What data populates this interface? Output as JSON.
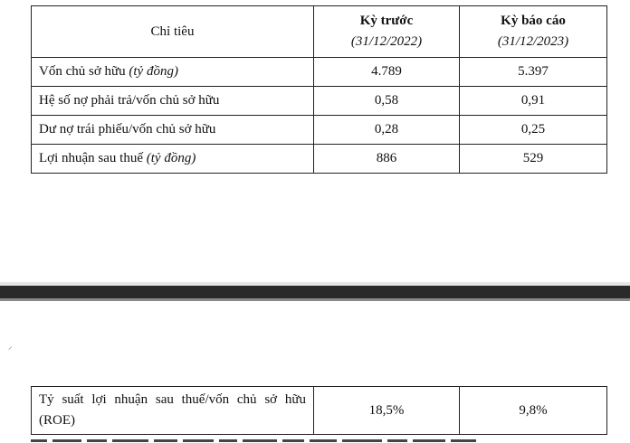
{
  "table_top": {
    "header": {
      "col1": "Chỉ tiêu",
      "col2_title": "Kỳ trước",
      "col2_date": "(31/12/2022)",
      "col3_title": "Kỳ báo cáo",
      "col3_date": "(31/12/2023)"
    },
    "rows": [
      {
        "label": "Vốn chủ sở hữu",
        "unit": "(tỷ đồng)",
        "prev": "4.789",
        "curr": "5.397"
      },
      {
        "label": "Hệ số nợ phải trả/vốn chủ sở hữu",
        "unit": "",
        "prev": "0,58",
        "curr": "0,91"
      },
      {
        "label": "Dư nợ trái phiếu/vốn chủ sở hữu",
        "unit": "",
        "prev": "0,28",
        "curr": "0,25"
      },
      {
        "label": "Lợi nhuận sau thuế",
        "unit": "(tỷ đồng)",
        "prev": "886",
        "curr": "529"
      }
    ]
  },
  "table_bottom": {
    "row": {
      "label": "Tỷ suất lợi nhuận sau thuế/vốn chủ sở hữu (ROE)",
      "prev": "18,5%",
      "curr": "9,8%"
    }
  },
  "colors": {
    "border": "#222222",
    "divider": "#2a2a2a"
  }
}
